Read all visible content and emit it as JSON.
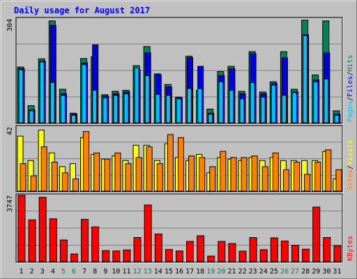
{
  "chart_data": {
    "type": "bar",
    "title": "Daily usage for August 2017",
    "x": [
      "1",
      "2",
      "3",
      "4",
      "5",
      "6",
      "7",
      "8",
      "9",
      "10",
      "11",
      "12",
      "13",
      "14",
      "15",
      "16",
      "17",
      "18",
      "19",
      "20",
      "21",
      "22",
      "23",
      "24",
      "25",
      "26",
      "27",
      "28",
      "29",
      "30",
      "31"
    ],
    "weekend_days": [
      "5",
      "6",
      "12",
      "13",
      "19",
      "20",
      "26",
      "27"
    ],
    "colors": {
      "background": "#C0C0C0",
      "plot_bg": "#C0C0C0",
      "grid": "#808080",
      "title": "#0000FF",
      "weekday_label": "#000000",
      "weekend_label": "#00805C",
      "hits": "#00805C",
      "files": "#0000E6",
      "pages": "#00C0FF",
      "visits": "#FFFF00",
      "sites": "#FF8000",
      "kbytes": "#FF0000"
    },
    "panels": [
      {
        "id": "hits_files_pages",
        "ymax": 304,
        "ymax_label": "304",
        "legend": [
          {
            "label": "Pages",
            "color": "#00C0FF"
          },
          {
            "label": "/",
            "color": "#000000"
          },
          {
            "label": "Files",
            "color": "#0000E6"
          },
          {
            "label": "/",
            "color": "#000000"
          },
          {
            "label": "Hits",
            "color": "#00805C"
          }
        ],
        "series": [
          {
            "name": "Hits",
            "color": "#00805C",
            "values": [
              163,
              50,
              187,
              298,
              98,
              28,
              188,
              193,
              82,
              92,
              95,
              167,
              223,
              143,
              112,
              75,
              195,
              95,
              40,
              150,
              165,
              92,
              208,
              90,
              120,
              208,
              98,
              300,
              140,
              298,
              35
            ]
          },
          {
            "name": "Files",
            "color": "#0000E6",
            "values": [
              158,
              38,
              180,
              285,
              85,
              25,
              175,
              228,
              78,
              85,
              90,
              155,
              205,
              140,
              105,
              73,
              190,
              165,
              28,
              138,
              158,
              85,
              202,
              85,
              115,
              190,
              90,
              258,
              125,
              205,
              25
            ]
          },
          {
            "name": "Pages",
            "color": "#00C0FF",
            "values": [
              155,
              35,
              178,
              118,
              80,
              22,
              170,
              95,
              73,
              80,
              85,
              160,
              138,
              83,
              80,
              70,
              100,
              100,
              25,
              120,
              95,
              70,
              118,
              75,
              110,
              80,
              88,
              255,
              120,
              128,
              22
            ]
          }
        ]
      },
      {
        "id": "visits_sites",
        "ymax": 42,
        "ymax_label": "42",
        "legend": [
          {
            "label": "Sites",
            "color": "#FF8000"
          },
          {
            "label": "/",
            "color": "#000000"
          },
          {
            "label": "Visits",
            "color": "#FFFF00"
          }
        ],
        "series": [
          {
            "name": "Visits",
            "color": "#FFFF00",
            "values": [
              36,
              20,
              40,
              25,
              16,
              18,
              35,
              24,
              21,
              23,
              20,
              30,
              30,
              20,
              31,
              22,
              20,
              24,
              12,
              22,
              21,
              20,
              22,
              20,
              22,
              20,
              20,
              20,
              20,
              26,
              8
            ]
          },
          {
            "name": "Sites",
            "color": "#FF8000",
            "values": [
              18,
              10,
              29,
              19,
              12,
              8,
              39,
              25,
              21,
              25,
              18,
              22,
              29,
              18,
              37,
              35,
              23,
              22,
              16,
              26,
              22,
              22,
              23,
              16,
              25,
              14,
              19,
              11,
              19,
              27,
              14
            ]
          }
        ]
      },
      {
        "id": "kbytes",
        "ymax": 3747,
        "ymax_label": "3747",
        "legend": [
          {
            "label": "KBytes",
            "color": "#FF0000"
          }
        ],
        "series": [
          {
            "name": "KBytes",
            "color": "#FF0000",
            "values": [
              3747,
              2360,
              3637,
              2420,
              1220,
              430,
              2390,
              1960,
              620,
              600,
              660,
              1360,
              3200,
              1560,
              680,
              600,
              1140,
              1460,
              310,
              1140,
              1020,
              590,
              1360,
              670,
              1340,
              1160,
              920,
              700,
              3080,
              1360,
              900
            ]
          }
        ]
      }
    ]
  }
}
